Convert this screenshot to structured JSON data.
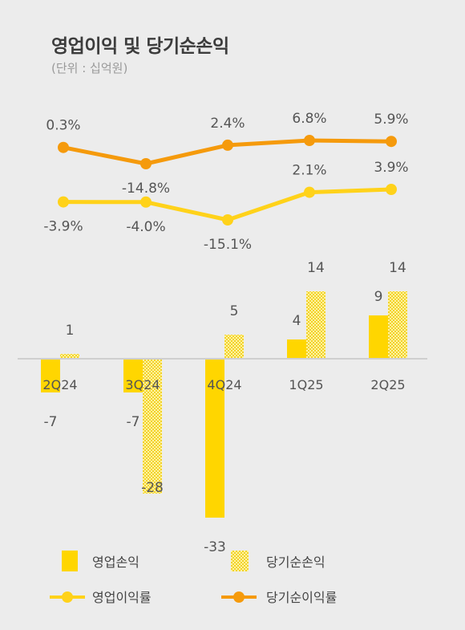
{
  "header": {
    "title": "영업이익 및 당기순손익",
    "unit": "(단위 : 십억원)"
  },
  "legend": {
    "op_income": "영업손익",
    "net_income": "당기순손익",
    "op_margin": "영업이익률",
    "net_margin": "당기순이익률"
  },
  "colors": {
    "op_bar": "#ffd600",
    "net_bar_light": "#fff3a0",
    "net_bar_dark": "#f2d22a",
    "op_line": "#ffd21a",
    "net_line": "#f59a0c",
    "axis": "#cfcfcf",
    "background": "#ececec"
  },
  "chart_data": {
    "type": "bar",
    "categories": [
      "2Q24",
      "3Q24",
      "4Q24",
      "1Q25",
      "2Q25"
    ],
    "series": [
      {
        "name": "영업손익",
        "type": "bar",
        "values": [
          -7,
          -7,
          -33,
          4,
          9
        ],
        "labels": [
          "-7",
          "-7",
          "-33",
          "4",
          "9"
        ]
      },
      {
        "name": "당기순손익",
        "type": "bar",
        "values": [
          1,
          -28,
          5,
          14,
          14
        ],
        "labels": [
          "1",
          "-28",
          "5",
          "14",
          "14"
        ]
      },
      {
        "name": "영업이익률",
        "type": "line",
        "values": [
          -3.9,
          -4.0,
          -15.1,
          2.1,
          3.9
        ],
        "labels": [
          "-3.9%",
          "-4.0%",
          "-15.1%",
          "2.1%",
          "3.9%"
        ]
      },
      {
        "name": "당기순이익률",
        "type": "line",
        "values": [
          0.3,
          -14.8,
          2.4,
          6.8,
          5.9
        ],
        "labels": [
          "0.3%",
          "-14.8%",
          "2.4%",
          "6.8%",
          "5.9%"
        ]
      }
    ]
  }
}
